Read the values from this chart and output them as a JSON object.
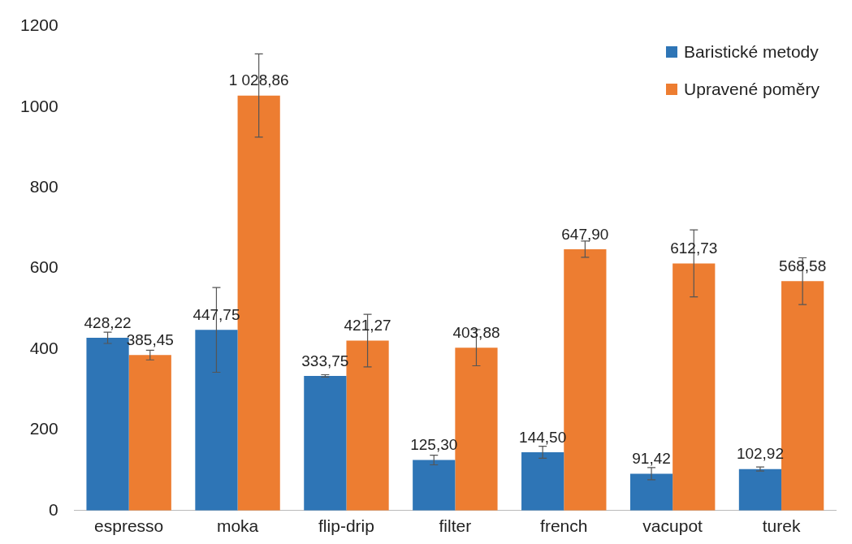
{
  "chart_data": {
    "type": "bar",
    "categories": [
      "espresso",
      "moka",
      "flip-drip",
      "filter",
      "french",
      "vacupot",
      "turek"
    ],
    "series": [
      {
        "name": "Baristické metody",
        "color": "#2e75b6",
        "values": [
          428.22,
          447.75,
          333.75,
          125.3,
          144.5,
          91.42,
          102.92
        ],
        "errors": [
          14,
          105,
          3,
          12,
          15,
          15,
          5
        ],
        "value_labels": [
          "428,22",
          "447,75",
          "333,75",
          "125,30",
          "144,50",
          "91,42",
          "102,92"
        ]
      },
      {
        "name": "Upravené poměry",
        "color": "#ed7d31",
        "values": [
          385.45,
          1028.86,
          421.27,
          403.88,
          647.9,
          612.73,
          568.58
        ],
        "errors": [
          12,
          103,
          65,
          45,
          20,
          83,
          58
        ],
        "value_labels": [
          "385,45",
          "1 028,86",
          "421,27",
          "403,88",
          "647,90",
          "612,73",
          "568,58"
        ]
      }
    ],
    "ylim": [
      0,
      1200
    ],
    "yticks": [
      0,
      200,
      400,
      600,
      800,
      1000,
      1200
    ],
    "grid": false,
    "legend": "top right"
  }
}
